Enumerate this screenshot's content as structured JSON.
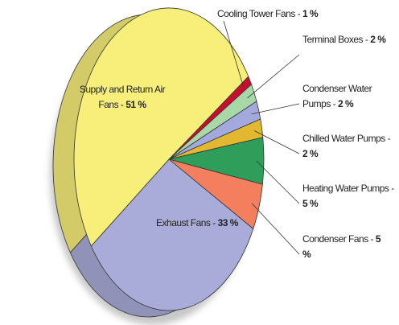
{
  "chart_data": {
    "type": "pie",
    "categories": [
      "Cooling Tower Fans -",
      "Terminal Boxes -",
      "Condenser Water Pumps -",
      "Chilled Water Pumps -",
      "Heating Water Pumps -",
      "Condenser Fans -",
      "Exhaust Fans -",
      "Supply and Return Air Fans -"
    ],
    "values": [
      1,
      2,
      2,
      2,
      5,
      5,
      33,
      51
    ],
    "value_labels": [
      "1 %",
      "2 %",
      "2 %",
      "2 %",
      "5 %",
      "5 %",
      "33 %",
      "51 %"
    ],
    "colors": [
      "#c8102e",
      "#a8d8a8",
      "#a3a9dc",
      "#e2b830",
      "#2e9e5a",
      "#f47f5e",
      "#a9acd8",
      "#f8ef7a"
    ]
  }
}
